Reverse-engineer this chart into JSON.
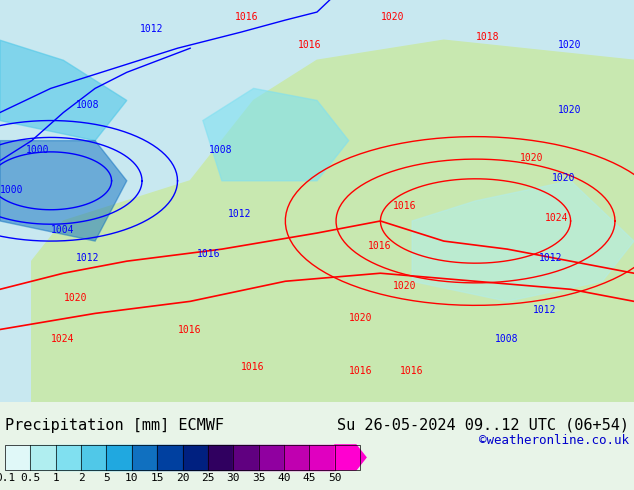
{
  "title_left": "Precipitation [mm] ECMWF",
  "title_right": "Su 26-05-2024 09..12 UTC (06+54)",
  "credit": "©weatheronline.co.uk",
  "colorbar_values": [
    0.1,
    0.5,
    1,
    2,
    5,
    10,
    15,
    20,
    25,
    30,
    35,
    40,
    45,
    50
  ],
  "colorbar_colors": [
    "#e0f8f8",
    "#b0eef0",
    "#80e0f0",
    "#50c8e8",
    "#20a8e0",
    "#1070c0",
    "#0040a0",
    "#002080",
    "#300060",
    "#600080",
    "#9000a0",
    "#c000b0",
    "#e000c0",
    "#ff00d0"
  ],
  "bg_color": "#e8f4e8",
  "map_bg": "#e8f4e8",
  "bottom_bg": "#f0f0f0",
  "text_color": "#000000",
  "credit_color": "#0000cc",
  "font_size_title": 11,
  "font_size_credit": 9,
  "font_size_label": 9
}
